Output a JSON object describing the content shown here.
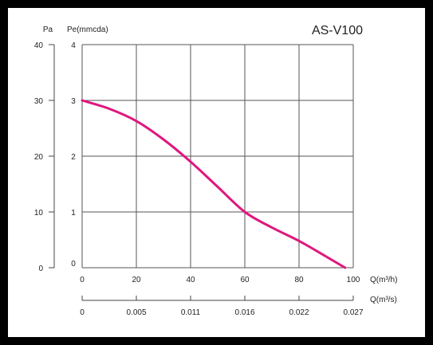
{
  "chart_data": {
    "type": "line",
    "title": "AS-V100",
    "xlabel": "Q(m³/h)",
    "xlabel_secondary": "Q(m³/s)",
    "ylabel_left": "Pa",
    "ylabel_right": "Pe(mmcda)",
    "xlim": [
      0,
      100
    ],
    "ylim": [
      0,
      40
    ],
    "x_ticks": [
      "0",
      "20",
      "40",
      "60",
      "80",
      "100"
    ],
    "x_secondary_ticks": [
      "0",
      "0.005",
      "0.011",
      "0.016",
      "0.022",
      "0.027"
    ],
    "y_ticks_pa": [
      "40",
      "30",
      "20",
      "10",
      "0"
    ],
    "y_ticks_mmcda": [
      "4",
      "3",
      "2",
      "1",
      "0"
    ],
    "grid": true,
    "series": [
      {
        "color": "#e0177e",
        "x": [
          0,
          10,
          20,
          30,
          40,
          50,
          60,
          70,
          80,
          90,
          97
        ],
        "y": [
          30,
          28.5,
          26.3,
          23,
          19,
          14.5,
          10,
          7.2,
          4.8,
          2,
          0
        ]
      }
    ]
  }
}
